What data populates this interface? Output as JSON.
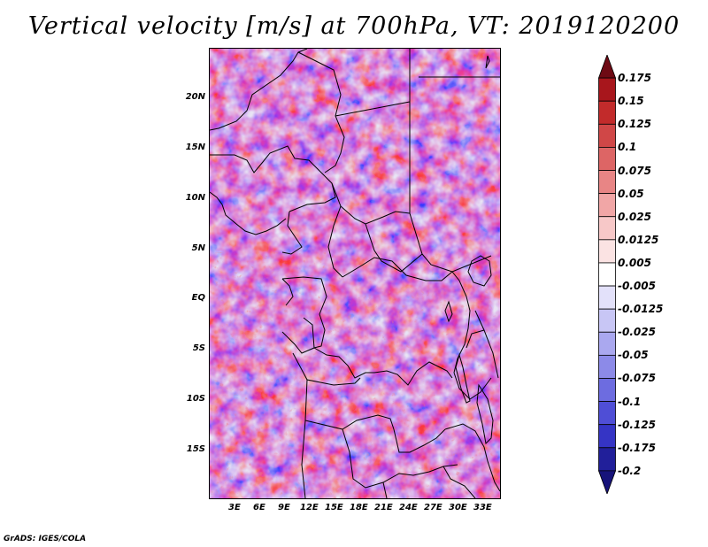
{
  "title": "Vertical velocity [m/s] at 700hPa, VT: 2019120200",
  "footer": "GrADS: IGES/COLA",
  "map": {
    "variable": "Vertical velocity",
    "units": "m/s",
    "level": "700hPa",
    "valid_time": "2019120200",
    "lat_labels": [
      "20N",
      "15N",
      "10N",
      "5N",
      "EQ",
      "5S",
      "10S",
      "15S"
    ],
    "lon_labels": [
      "3E",
      "6E",
      "9E",
      "12E",
      "15E",
      "18E",
      "21E",
      "24E",
      "27E",
      "30E",
      "33E"
    ]
  },
  "colorbar": {
    "labels": [
      "0.175",
      "0.15",
      "0.125",
      "0.1",
      "0.075",
      "0.05",
      "0.025",
      "0.0125",
      "0.005",
      "-0.005",
      "-0.0125",
      "-0.025",
      "-0.05",
      "-0.075",
      "-0.1",
      "-0.125",
      "-0.175",
      "-0.2"
    ],
    "colors": [
      "#6e0a14",
      "#a8161c",
      "#c22b2b",
      "#d04747",
      "#dd6565",
      "#e88585",
      "#f1a6a6",
      "#f7c8c8",
      "#fbe3e3",
      "#ffffff",
      "#e3e1fa",
      "#c8c6f5",
      "#aaa8ef",
      "#8c8ae8",
      "#6d6ce0",
      "#4f4ed6",
      "#3534c5",
      "#211f9a",
      "#17137a"
    ]
  }
}
